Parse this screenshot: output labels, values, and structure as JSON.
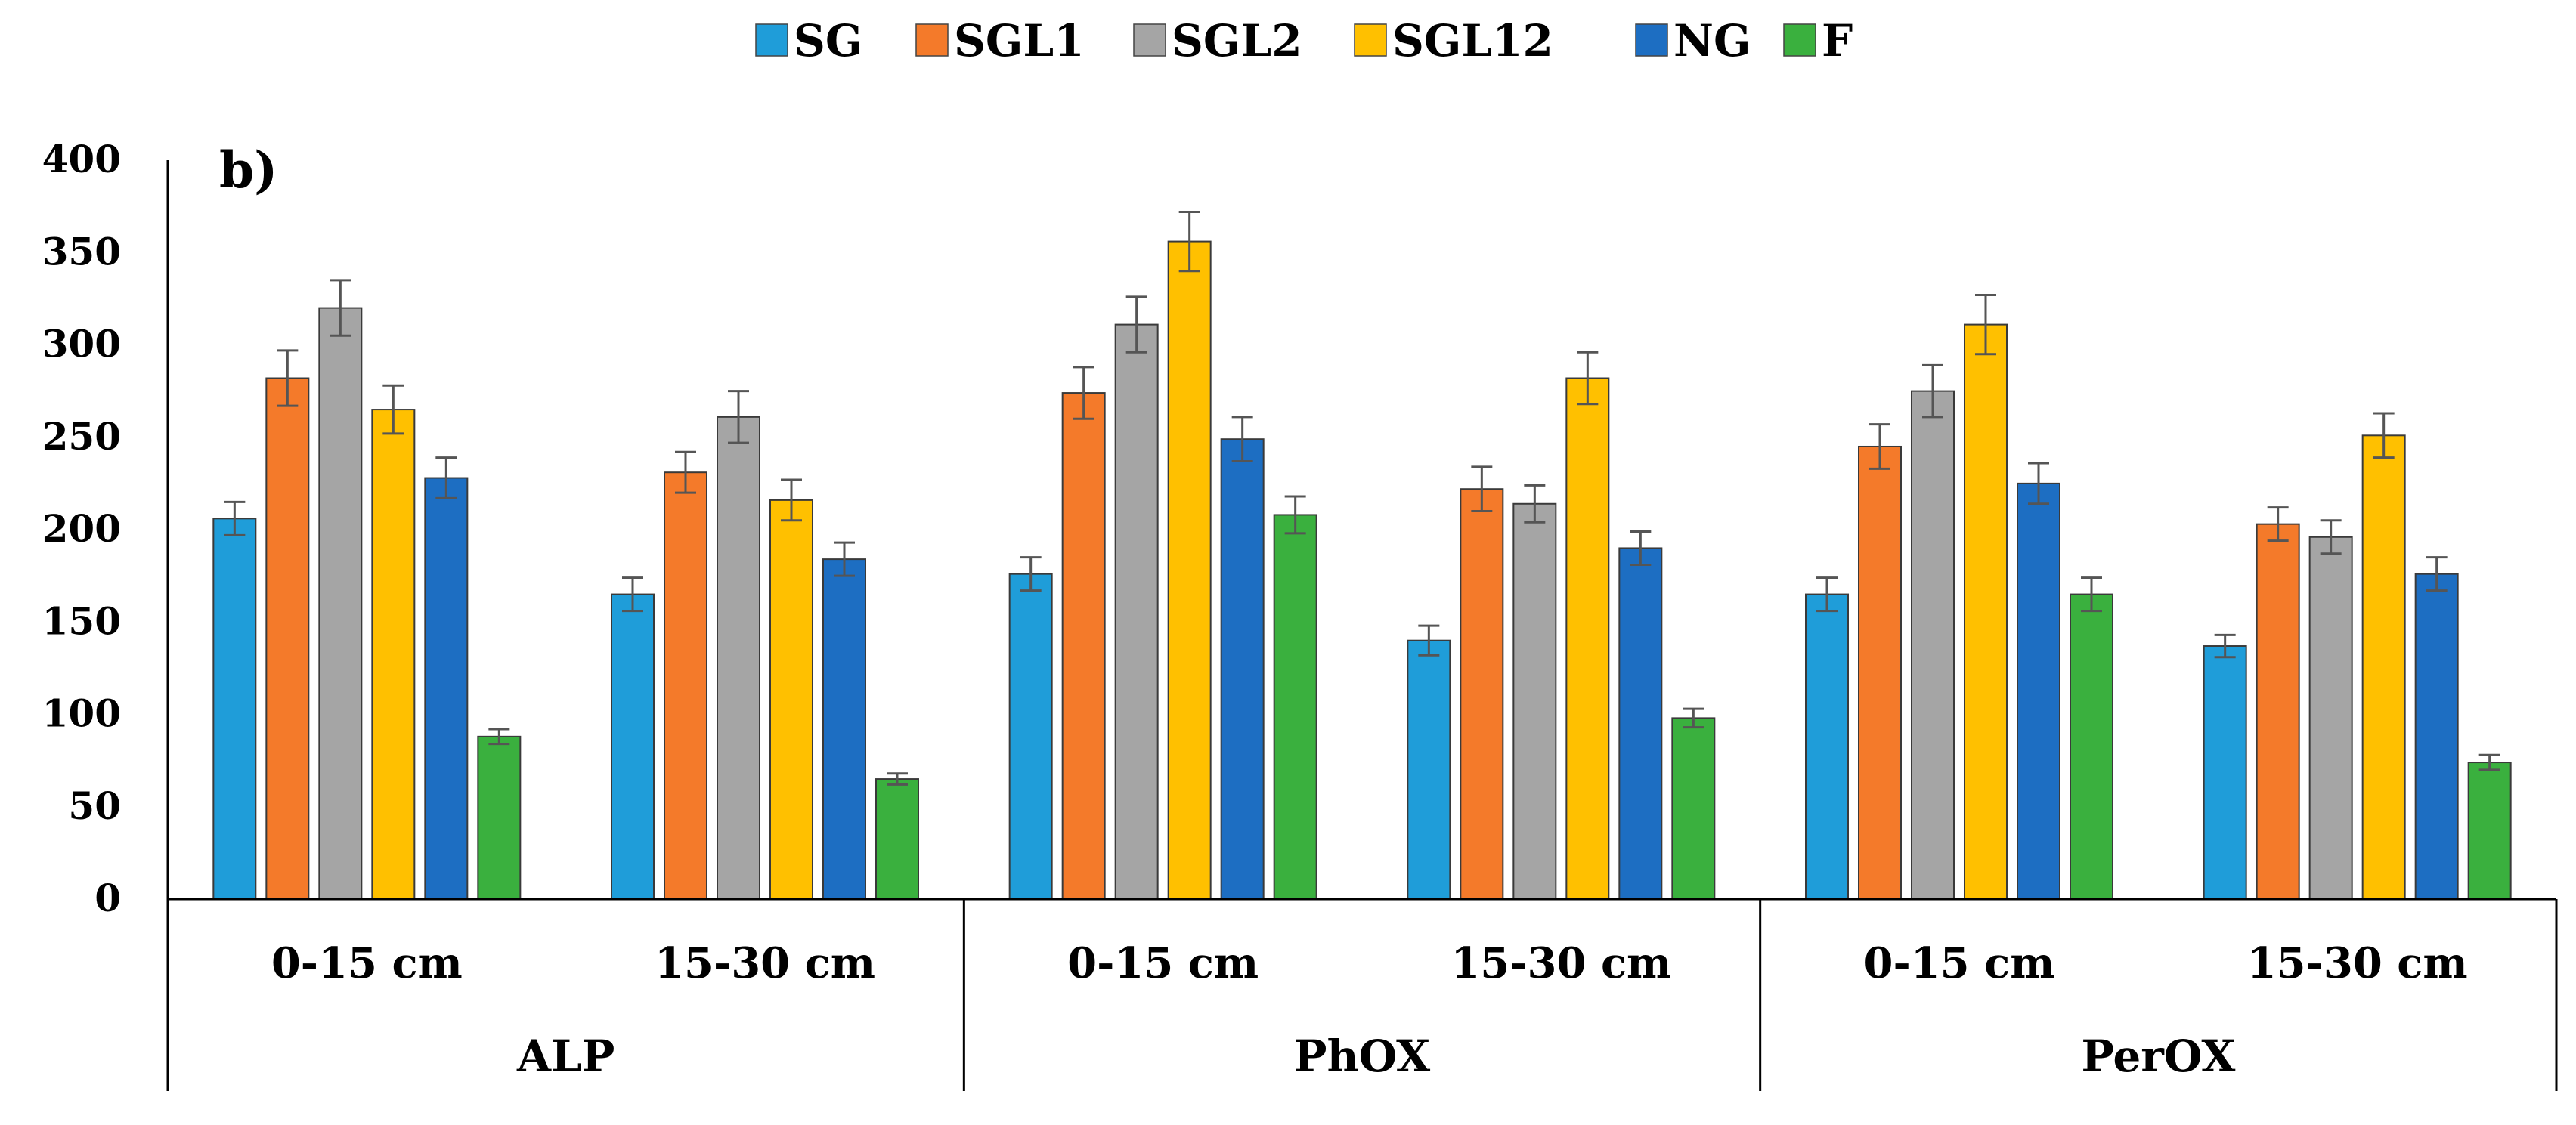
{
  "chart_data": {
    "type": "bar",
    "panel_label": "b)",
    "groups": [
      {
        "name": "ALP",
        "categories": [
          "0-15 cm",
          "15-30 cm"
        ]
      },
      {
        "name": "PhOX",
        "categories": [
          "0-15 cm",
          "15-30 cm"
        ]
      },
      {
        "name": "PerOX",
        "categories": [
          "0-15 cm",
          "15-30 cm"
        ]
      }
    ],
    "series": [
      {
        "name": "SG",
        "color": "#1f9dd9",
        "values": [
          206,
          165,
          176,
          140,
          165,
          137
        ],
        "errors": [
          9,
          9,
          9,
          8,
          9,
          6
        ]
      },
      {
        "name": "SGL1",
        "color": "#f47a2a",
        "values": [
          282,
          231,
          274,
          222,
          245,
          203
        ],
        "errors": [
          15,
          11,
          14,
          12,
          12,
          9
        ]
      },
      {
        "name": "SGL2",
        "color": "#a5a5a5",
        "values": [
          320,
          261,
          311,
          214,
          275,
          196
        ],
        "errors": [
          15,
          14,
          15,
          10,
          14,
          9
        ]
      },
      {
        "name": "SGL12",
        "color": "#ffc000",
        "values": [
          265,
          216,
          356,
          282,
          311,
          251
        ],
        "errors": [
          13,
          11,
          16,
          14,
          16,
          12
        ]
      },
      {
        "name": "NG",
        "color": "#1d6ec2",
        "values": [
          228,
          184,
          249,
          190,
          225,
          176
        ],
        "errors": [
          11,
          9,
          12,
          9,
          11,
          9
        ]
      },
      {
        "name": "F",
        "color": "#3ab03e",
        "values": [
          88,
          65,
          208,
          98,
          165,
          74
        ],
        "errors": [
          4,
          3,
          10,
          5,
          9,
          4
        ]
      }
    ],
    "yaxis": {
      "min": 0,
      "max": 400,
      "ticks": [
        "0",
        "50",
        "100",
        "150",
        "200",
        "250",
        "300",
        "350",
        "400"
      ]
    },
    "legend_position": "top-center",
    "grid": false
  }
}
